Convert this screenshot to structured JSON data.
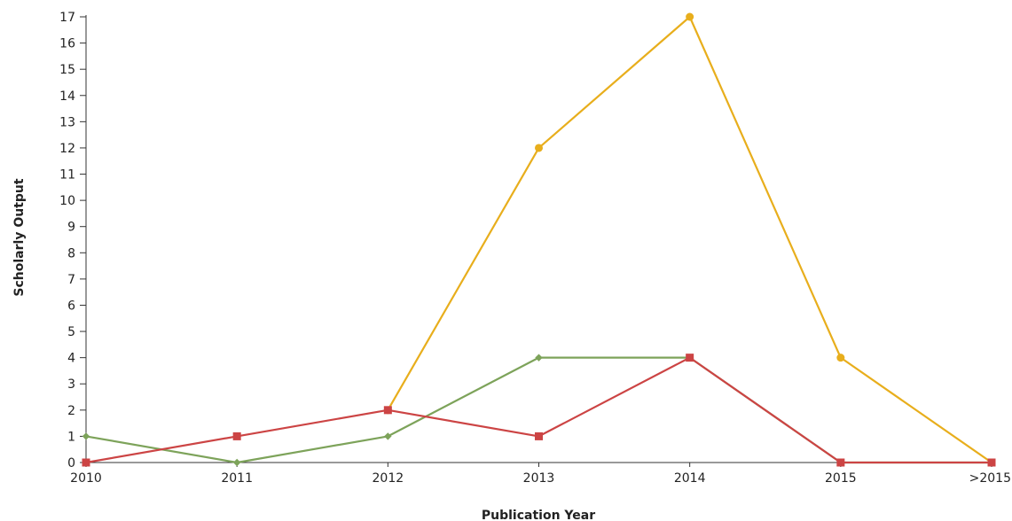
{
  "chart_data": {
    "type": "line",
    "title": "",
    "xlabel": "Publication Year",
    "ylabel": "Scholarly Output",
    "categories": [
      "2010",
      "2011",
      "2012",
      "2013",
      "2014",
      "2015",
      ">2015"
    ],
    "ylim": [
      0,
      17
    ],
    "yticks": [
      0,
      1,
      2,
      3,
      4,
      5,
      6,
      7,
      8,
      9,
      10,
      11,
      12,
      13,
      14,
      15,
      16,
      17
    ],
    "grid": false,
    "legend": "none",
    "series": [
      {
        "color": "#E8AE1C",
        "marker": "circle",
        "values": [
          null,
          null,
          2,
          12,
          17,
          4,
          0
        ]
      },
      {
        "color": "#7DA35A",
        "marker": "diamond",
        "values": [
          1,
          0,
          1,
          4,
          4,
          0,
          0
        ]
      },
      {
        "color": "#CC4444",
        "marker": "square",
        "values": [
          0,
          1,
          2,
          1,
          4,
          0,
          0
        ]
      }
    ]
  },
  "colors": {
    "axis": "#333333",
    "text": "#222222"
  }
}
